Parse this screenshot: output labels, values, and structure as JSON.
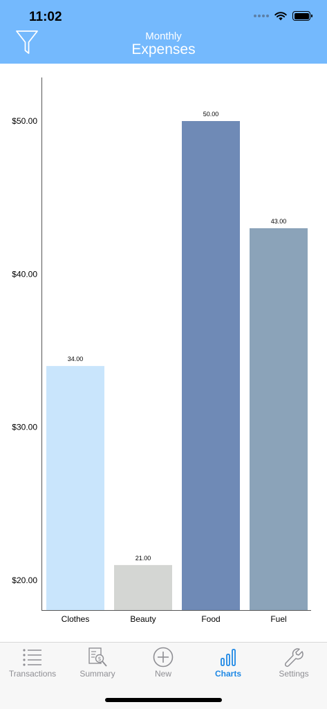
{
  "status_bar": {
    "time": "11:02"
  },
  "header": {
    "subtitle": "Monthly",
    "title": "Expenses",
    "filter_icon": "filter-icon",
    "background": "#74b9fd"
  },
  "chart_data": {
    "type": "bar",
    "categories": [
      "Clothes",
      "Beauty",
      "Food",
      "Fuel"
    ],
    "values": [
      34.0,
      21.0,
      50.0,
      43.0
    ],
    "value_labels": [
      "34.00",
      "21.00",
      "50.00",
      "43.00"
    ],
    "colors": [
      "#c9e5fc",
      "#d4d6d3",
      "#6f8ab6",
      "#8ba3b9"
    ],
    "yticks": [
      20,
      30,
      40,
      50
    ],
    "ytick_labels": [
      "$20.00",
      "$30.00",
      "$40.00",
      "$50.00"
    ],
    "ylim": [
      18,
      53
    ],
    "title": "",
    "xlabel": "",
    "ylabel": "",
    "grid": false
  },
  "tabbar": {
    "tabs": [
      {
        "label": "Transactions",
        "icon": "list-icon",
        "active": false
      },
      {
        "label": "Summary",
        "icon": "summary-report-icon",
        "active": false
      },
      {
        "label": "New",
        "icon": "plus-circle-icon",
        "active": false
      },
      {
        "label": "Charts",
        "icon": "bar-chart-icon",
        "active": true
      },
      {
        "label": "Settings",
        "icon": "wrench-icon",
        "active": false
      }
    ],
    "active_color": "#1e88e5",
    "inactive_color": "#8e8e93"
  }
}
